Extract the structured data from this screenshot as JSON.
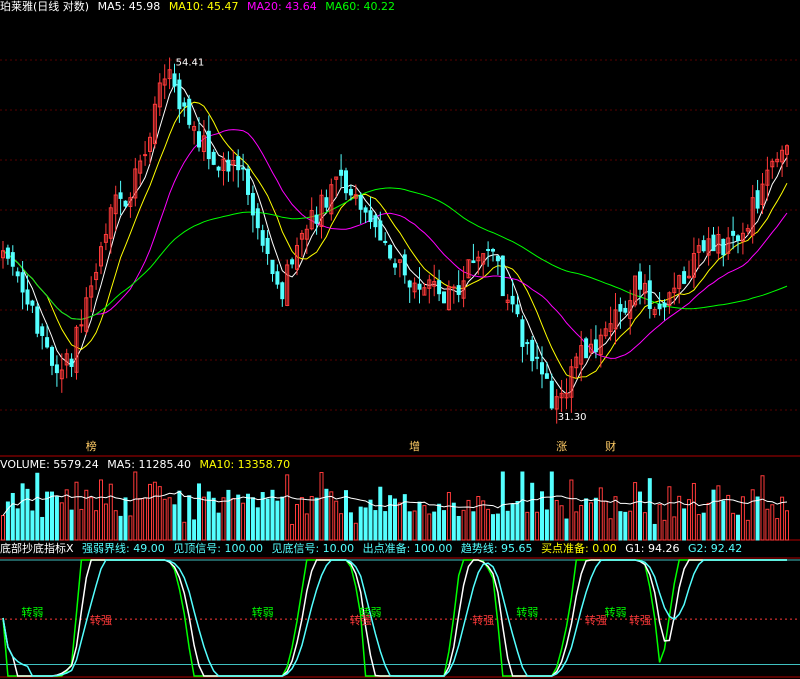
{
  "colors": {
    "up": "#ff3a3a",
    "down": "#54ffff",
    "ma5": "#ffffff",
    "ma10": "#ffff00",
    "ma20": "#ff00ff",
    "ma60": "#00ff00",
    "frame": "#b00000",
    "grid": "#b00000"
  },
  "main": {
    "title": "珀莱雅(日线 对数)",
    "ma5_label": "MA5: 45.98",
    "ma10_label": "MA10: 45.47",
    "ma20_label": "MA20: 43.64",
    "ma60_label": "MA60: 40.22",
    "high_annotation": "54.41",
    "low_annotation": "31.30",
    "markers": [
      {
        "text": "榜",
        "idx": 18
      },
      {
        "text": "增",
        "idx": 84
      },
      {
        "text": "涨",
        "idx": 114
      },
      {
        "text": "财",
        "idx": 124
      }
    ]
  },
  "volume": {
    "volume_label": "VOLUME: 5579.24",
    "ma5_label": "MA5: 11285.40",
    "ma10_label": "MA10: 13358.70"
  },
  "indicator": {
    "title": "底部抄底指标X",
    "labels": [
      {
        "text": "强弱界线: 49.00",
        "color": "#54ffff"
      },
      {
        "text": "见顶信号: 100.00",
        "color": "#54ffff"
      },
      {
        "text": "见底信号: 10.00",
        "color": "#54ffff"
      },
      {
        "text": "出点准备: 100.00",
        "color": "#54ffff"
      },
      {
        "text": "趋势线: 95.65",
        "color": "#54ffff"
      },
      {
        "text": "买点准备: 0.00",
        "color": "#ffff00"
      },
      {
        "text": "G1: 94.26",
        "color": "#ffffff"
      },
      {
        "text": "G2: 92.42",
        "color": "#54ffff"
      }
    ],
    "weak_label": "转弱",
    "strong_label": "转强",
    "weak_idx": [
      6,
      53,
      75,
      107,
      125
    ],
    "strong_idx": [
      20,
      73,
      98,
      121,
      130
    ]
  },
  "chart_data": [
    {
      "type": "candlestick",
      "title": "珀莱雅(日线 对数)",
      "scale": "log",
      "ylim": [
        30.5,
        56.5
      ],
      "series": [
        {
          "name": "MA5",
          "value": 45.98
        },
        {
          "name": "MA10",
          "value": 45.47
        },
        {
          "name": "MA20",
          "value": 43.64
        },
        {
          "name": "MA60",
          "value": 40.22
        }
      ],
      "annotations": [
        {
          "text": "54.41"
        },
        {
          "text": "31.30"
        }
      ],
      "waypoints": [
        [
          0,
          40.6
        ],
        [
          3,
          39.8
        ],
        [
          8,
          35.6
        ],
        [
          10,
          34.5
        ],
        [
          14,
          35.0
        ],
        [
          18,
          39.0
        ],
        [
          22,
          43.0
        ],
        [
          26,
          44.2
        ],
        [
          30,
          48.0
        ],
        [
          33,
          52.5
        ],
        [
          35,
          51.5
        ],
        [
          38,
          48.5
        ],
        [
          41,
          47.0
        ],
        [
          45,
          46.0
        ],
        [
          49,
          45.0
        ],
        [
          52,
          42.5
        ],
        [
          54,
          40.5
        ],
        [
          57,
          38.5
        ],
        [
          60,
          40.8
        ],
        [
          63,
          42.5
        ],
        [
          67,
          44.2
        ],
        [
          70,
          44.6
        ],
        [
          73,
          43.8
        ],
        [
          76,
          42.5
        ],
        [
          79,
          40.5
        ],
        [
          82,
          39.2
        ],
        [
          86,
          38.8
        ],
        [
          90,
          37.8
        ],
        [
          93,
          38.8
        ],
        [
          97,
          40.8
        ],
        [
          100,
          40.3
        ],
        [
          103,
          38.0
        ],
        [
          106,
          36.0
        ],
        [
          109,
          34.3
        ],
        [
          111,
          33.5
        ],
        [
          112,
          32.0
        ],
        [
          114,
          33.2
        ],
        [
          117,
          34.8
        ],
        [
          120,
          35.5
        ],
        [
          123,
          36.3
        ],
        [
          126,
          37.3
        ],
        [
          129,
          38.5
        ],
        [
          131,
          38.3
        ],
        [
          134,
          37.2
        ],
        [
          137,
          38.2
        ],
        [
          141,
          40.0
        ],
        [
          144,
          40.8
        ],
        [
          148,
          41.0
        ],
        [
          152,
          42.5
        ],
        [
          156,
          45.0
        ],
        [
          160,
          46.5
        ]
      ]
    },
    {
      "type": "bar",
      "title": "VOLUME",
      "series": [
        {
          "name": "VOLUME",
          "value": 5579.24
        },
        {
          "name": "MA5",
          "value": 11285.4
        },
        {
          "name": "MA10",
          "value": 13358.7
        }
      ]
    },
    {
      "type": "line",
      "title": "底部抄底指标X",
      "ylim": [
        0,
        100
      ],
      "series": [
        {
          "name": "强弱界线",
          "value": 49.0
        },
        {
          "name": "见顶信号",
          "value": 100.0
        },
        {
          "name": "见底信号",
          "value": 10.0
        },
        {
          "name": "出点准备",
          "value": 100.0
        },
        {
          "name": "趋势线",
          "value": 95.65
        },
        {
          "name": "买点准备",
          "value": 0.0
        },
        {
          "name": "G1",
          "value": 94.26
        },
        {
          "name": "G2",
          "value": 92.42
        }
      ]
    }
  ]
}
